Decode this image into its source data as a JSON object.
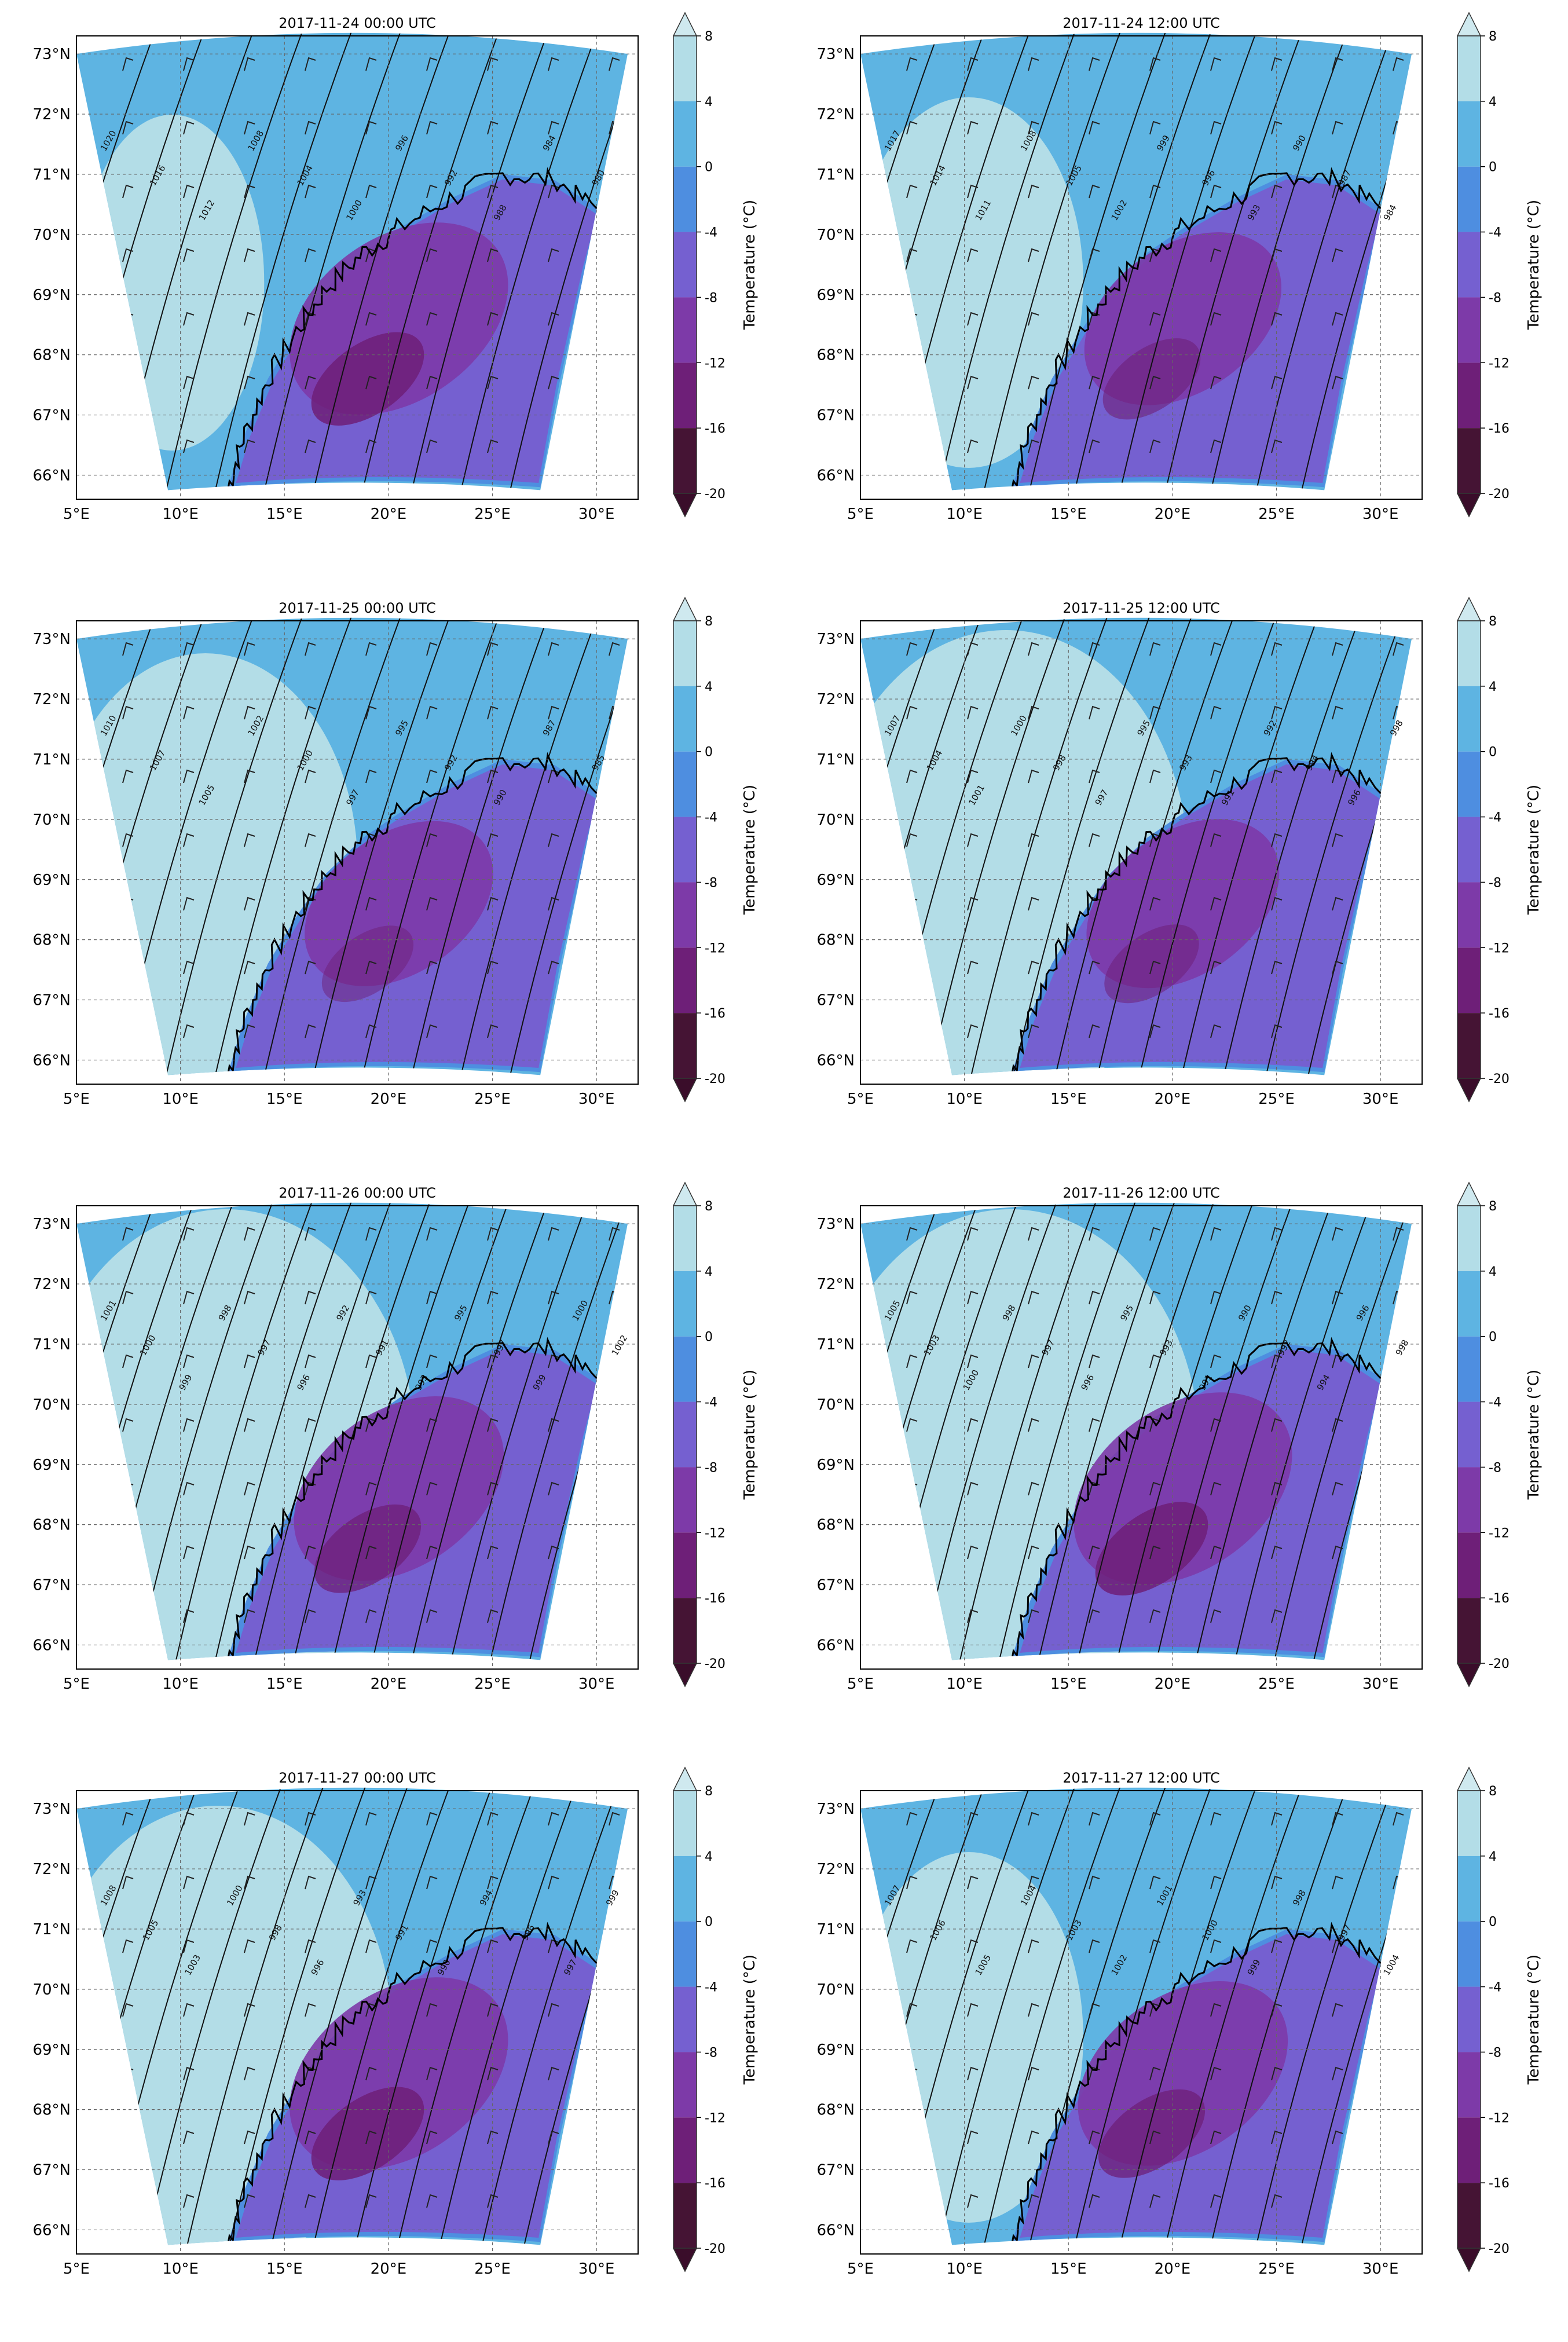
{
  "figure": {
    "colorbar": {
      "label": "Temperature (°C)",
      "ticks": [
        8,
        4,
        0,
        -4,
        -8,
        -12,
        -16,
        -20
      ],
      "bands": [
        {
          "from": 4,
          "to": 8,
          "color": "#b3dde7"
        },
        {
          "from": 0,
          "to": 4,
          "color": "#5eb4e2"
        },
        {
          "from": -4,
          "to": 0,
          "color": "#4e8ee0"
        },
        {
          "from": -8,
          "to": -4,
          "color": "#7560d0"
        },
        {
          "from": -12,
          "to": -8,
          "color": "#7d3aa8"
        },
        {
          "from": -16,
          "to": -12,
          "color": "#6e1f78"
        },
        {
          "from": -20,
          "to": -16,
          "color": "#451434"
        }
      ],
      "extend_high_color": "#cfe9ef",
      "extend_low_color": "#3a0d2a"
    },
    "axes": {
      "lon_labels": [
        "5°E",
        "10°E",
        "15°E",
        "20°E",
        "25°E",
        "30°E"
      ],
      "lat_labels": [
        "73°N",
        "72°N",
        "71°N",
        "70°N",
        "69°N",
        "68°N",
        "67°N",
        "66°N"
      ]
    }
  },
  "panels": [
    {
      "title": "2017-11-24 00:00 UTC",
      "isobar_labels": [
        "1020",
        "1016",
        "1012",
        "1008",
        "1004",
        "1000",
        "996",
        "992",
        "988",
        "984",
        "980",
        "976",
        "972"
      ],
      "levels": {
        "sea_warm": 0.15,
        "inland_cold": 0.85
      }
    },
    {
      "title": "2017-11-24 12:00 UTC",
      "isobar_labels": [
        "1017",
        "1014",
        "1011",
        "1008",
        "1005",
        "1002",
        "999",
        "996",
        "993",
        "990",
        "987",
        "984",
        "981",
        "978"
      ],
      "levels": {
        "sea_warm": 0.3,
        "inland_cold": 0.6
      }
    },
    {
      "title": "2017-11-25 00:00 UTC",
      "isobar_labels": [
        "1010",
        "1007",
        "1005",
        "1002",
        "1000",
        "997",
        "995",
        "992",
        "990",
        "987",
        "985",
        "982",
        "980"
      ],
      "levels": {
        "sea_warm": 0.55,
        "inland_cold": 0.5
      }
    },
    {
      "title": "2017-11-25 12:00 UTC",
      "isobar_labels": [
        "1007",
        "1004",
        "1001",
        "1000",
        "998",
        "997",
        "995",
        "993",
        "991",
        "992",
        "994",
        "996",
        "998",
        "1002",
        "1003"
      ],
      "levels": {
        "sea_warm": 0.75,
        "inland_cold": 0.55
      }
    },
    {
      "title": "2017-11-26 00:00 UTC",
      "isobar_labels": [
        "1001",
        "1000",
        "999",
        "998",
        "997",
        "996",
        "992",
        "991",
        "993",
        "995",
        "997",
        "999",
        "1000",
        "1002",
        "1003",
        "1004"
      ],
      "levels": {
        "sea_warm": 0.8,
        "inland_cold": 0.75
      }
    },
    {
      "title": "2017-11-26 12:00 UTC",
      "isobar_labels": [
        "1005",
        "1003",
        "1000",
        "998",
        "997",
        "996",
        "995",
        "993",
        "991",
        "990",
        "992",
        "994",
        "996",
        "998",
        "1000",
        "1002"
      ],
      "levels": {
        "sea_warm": 0.8,
        "inland_cold": 0.85
      }
    },
    {
      "title": "2017-11-27 00:00 UTC",
      "isobar_labels": [
        "1008",
        "1005",
        "1003",
        "1000",
        "998",
        "996",
        "993",
        "991",
        "990",
        "994",
        "996",
        "997",
        "999",
        "1000",
        "1002"
      ],
      "levels": {
        "sea_warm": 0.7,
        "inland_cold": 0.85
      }
    },
    {
      "title": "2017-11-27 12:00 UTC",
      "isobar_labels": [
        "1007",
        "1006",
        "1005",
        "1004",
        "1003",
        "1002",
        "1001",
        "1000",
        "999",
        "998",
        "997",
        "1004",
        "1005",
        "1006"
      ],
      "levels": {
        "sea_warm": 0.3,
        "inland_cold": 0.75
      }
    }
  ]
}
